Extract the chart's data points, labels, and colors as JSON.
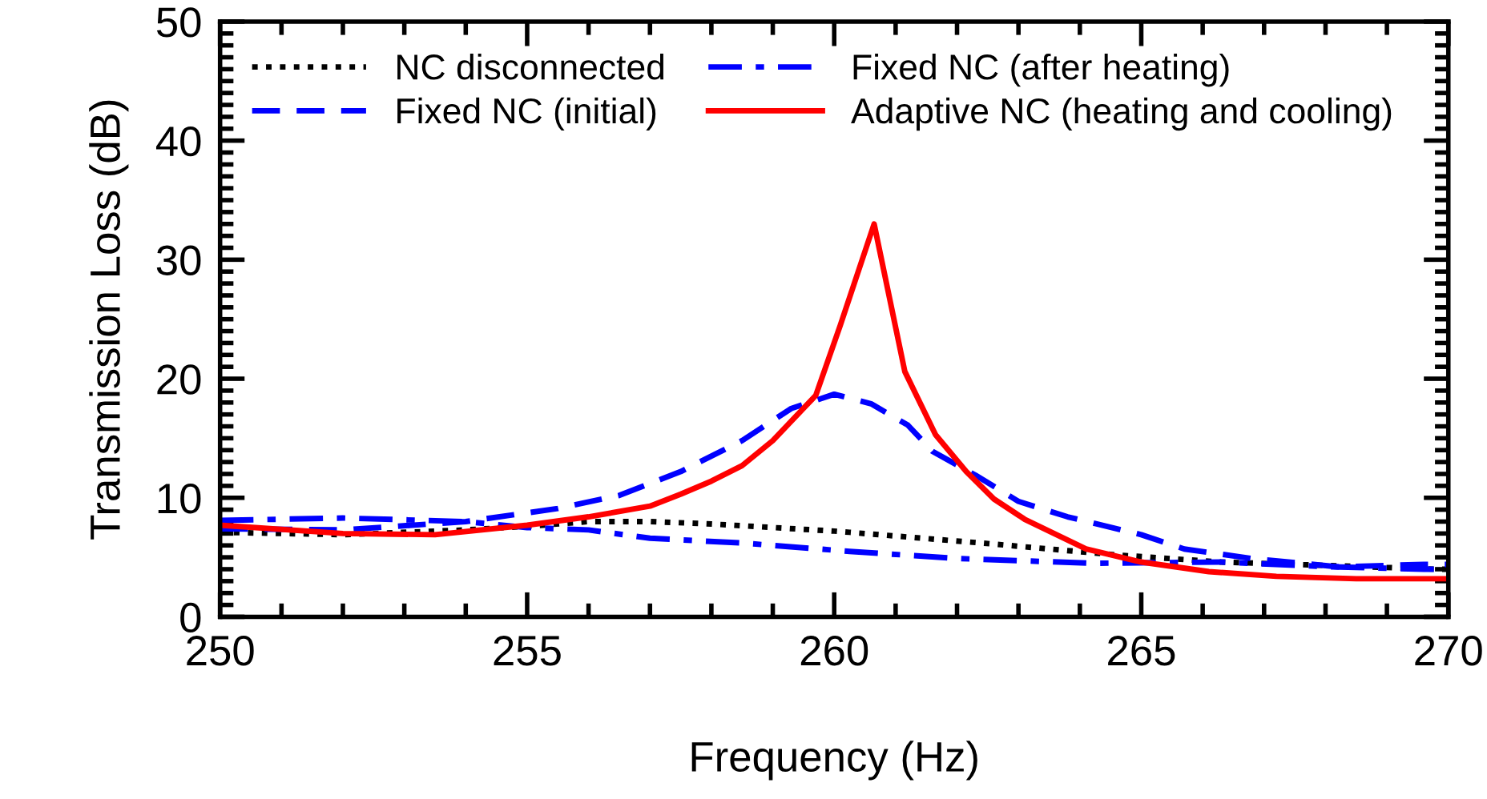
{
  "chart_data": {
    "type": "line",
    "xlabel": "Frequency (Hz)",
    "ylabel": "Transmission Loss (dB)",
    "xlim": [
      250,
      270
    ],
    "xticks": [
      250,
      255,
      260,
      265,
      270
    ],
    "ylim": [
      0,
      50
    ],
    "yticks": [
      0,
      10,
      20,
      30,
      40,
      50
    ],
    "grid": false,
    "legend": "top left",
    "marker": "none",
    "series": [
      {
        "name": "NC disconnected",
        "color": "#000000",
        "line_style": "dotted",
        "x": [
          250,
          252,
          254,
          255,
          256,
          257,
          258,
          259,
          260,
          260.25,
          262.4,
          264.6,
          266.3,
          268.1,
          269.8,
          270
        ],
        "values": [
          7.1,
          6.9,
          7.3,
          7.6,
          8.0,
          8.0,
          7.8,
          7.5,
          7.2,
          7.1,
          6.2,
          5.2,
          4.6,
          4.3,
          4.0,
          4.0
        ]
      },
      {
        "name": "Fixed NC (initial)",
        "color": "#0000ff",
        "line_style": "dashed",
        "x": [
          250,
          252,
          254,
          255.5,
          256.5,
          257.5,
          258.5,
          259.3,
          260,
          260.6,
          261.2,
          261.6,
          262.3,
          263,
          263.8,
          265,
          265.7,
          266.8,
          268.2,
          269.6,
          270
        ],
        "values": [
          7.4,
          7.3,
          8.0,
          9.1,
          10.2,
          12.2,
          14.8,
          17.5,
          18.7,
          17.9,
          16.1,
          13.9,
          11.9,
          9.7,
          8.4,
          6.9,
          5.7,
          4.9,
          4.2,
          4.4,
          4.4
        ]
      },
      {
        "name": "Fixed NC (after heating)",
        "color": "#0000ff",
        "line_style": "dashdot",
        "x": [
          250,
          252,
          254,
          255,
          256,
          257,
          258.5,
          260.25,
          262,
          264.2,
          266.3,
          268.1,
          269.6,
          270
        ],
        "values": [
          8.1,
          8.3,
          8.0,
          7.5,
          7.3,
          6.6,
          6.2,
          5.5,
          4.9,
          4.5,
          4.6,
          4.2,
          4.0,
          4.0
        ]
      },
      {
        "name": "Adaptive NC (heating and cooling)",
        "color": "#ff0000",
        "line_style": "solid",
        "x": [
          250,
          252,
          253.5,
          255,
          256,
          257,
          257.5,
          258,
          258.5,
          259,
          259.7,
          260.1,
          260.65,
          261.15,
          261.65,
          262.15,
          262.6,
          263.1,
          264.1,
          265,
          266.1,
          267.2,
          268.5,
          270
        ],
        "values": [
          7.7,
          7.0,
          6.9,
          7.7,
          8.4,
          9.3,
          10.3,
          11.4,
          12.7,
          14.8,
          18.6,
          24.5,
          33.0,
          20.6,
          15.3,
          12.2,
          9.9,
          8.2,
          5.7,
          4.6,
          3.8,
          3.4,
          3.2,
          3.2
        ]
      }
    ]
  }
}
